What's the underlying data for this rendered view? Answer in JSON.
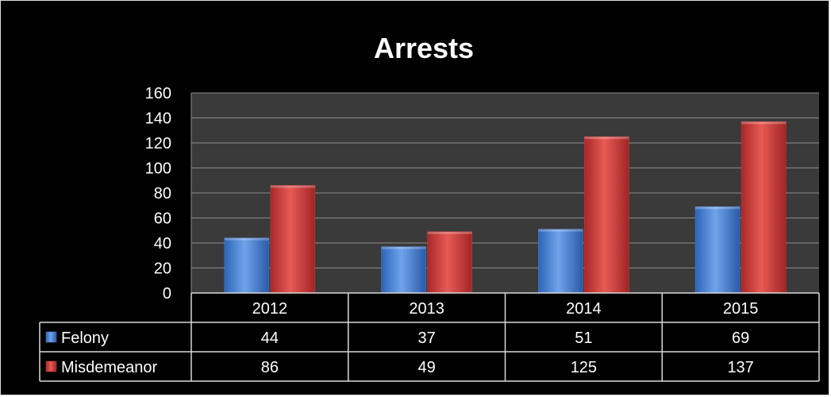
{
  "chart_data": {
    "type": "bar",
    "title": "Arrests",
    "categories": [
      "2012",
      "2013",
      "2014",
      "2015"
    ],
    "series": [
      {
        "name": "Felony",
        "values": [
          44,
          37,
          51,
          69
        ],
        "color": "#4f86d6"
      },
      {
        "name": "Misdemeanor",
        "values": [
          86,
          49,
          125,
          137
        ],
        "color": "#d43f3f"
      }
    ],
    "ylim": [
      0,
      160
    ],
    "yticks": [
      "0",
      "20",
      "40",
      "60",
      "80",
      "100",
      "120",
      "140",
      "160"
    ],
    "grid": true,
    "legend": "data-table",
    "background": "#000000"
  }
}
